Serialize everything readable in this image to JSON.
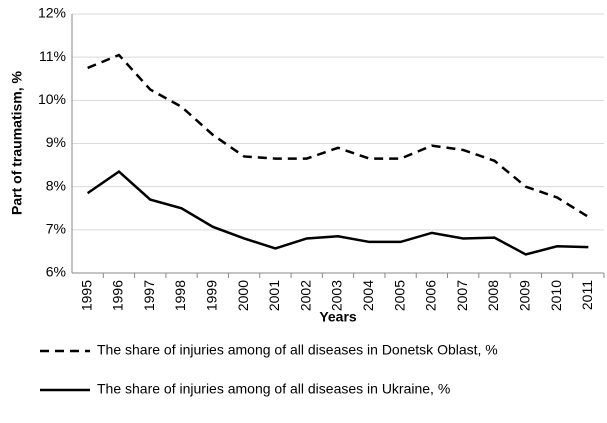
{
  "chart_data": {
    "type": "line",
    "y_label": "Part of traumatism, %",
    "x_label": "Years",
    "categories": [
      "1995",
      "1996",
      "1997",
      "1998",
      "1999",
      "2000",
      "2001",
      "2002",
      "2003",
      "2004",
      "2005",
      "2006",
      "2007",
      "2008",
      "2009",
      "2010",
      "2011"
    ],
    "series": [
      {
        "name": "The share of injuries among of all diseases in Donetsk Oblast, %",
        "color": "#000000",
        "style": "dashed",
        "values": [
          10.75,
          11.05,
          10.25,
          9.85,
          9.2,
          8.7,
          8.65,
          8.65,
          8.9,
          8.65,
          8.65,
          8.95,
          8.85,
          8.6,
          8.0,
          7.75,
          7.3
        ]
      },
      {
        "name": "The share of injuries among of all diseases in Ukraine, %",
        "color": "#000000",
        "style": "solid",
        "values": [
          7.85,
          8.35,
          7.7,
          7.5,
          7.07,
          6.8,
          6.57,
          6.8,
          6.85,
          6.72,
          6.72,
          6.93,
          6.8,
          6.82,
          6.43,
          6.62,
          6.6
        ]
      }
    ],
    "ylim": [
      6,
      12
    ],
    "yticks": [
      {
        "value": 6,
        "label": "6%"
      },
      {
        "value": 7,
        "label": "7%"
      },
      {
        "value": 8,
        "label": "8%"
      },
      {
        "value": 9,
        "label": "9%"
      },
      {
        "value": 10,
        "label": "10%"
      },
      {
        "value": 11,
        "label": "11%"
      },
      {
        "value": 12,
        "label": "12%"
      }
    ],
    "grid": true,
    "legend": "bottom"
  }
}
